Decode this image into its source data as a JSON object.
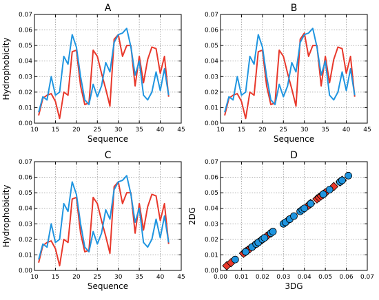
{
  "colors": {
    "red": "#e8382b",
    "blue": "#1f95e0",
    "grid": "#9a9a9a"
  },
  "chart_data": [
    {
      "type": "line",
      "title": "A",
      "xlabel": "Sequence",
      "ylabel": "Hydrophobicity",
      "xlim": [
        10,
        45
      ],
      "ylim": [
        0,
        0.07
      ],
      "xticks": [
        10,
        15,
        20,
        25,
        30,
        35,
        40,
        45
      ],
      "yticks": [
        0.0,
        0.01,
        0.02,
        0.03,
        0.04,
        0.05,
        0.06,
        0.07
      ],
      "grid": true,
      "x": [
        11,
        12,
        13,
        14,
        15,
        16,
        17,
        18,
        19,
        20,
        21,
        22,
        23,
        24,
        25,
        26,
        27,
        28,
        29,
        30,
        31,
        32,
        33,
        34,
        35,
        36,
        37,
        38,
        39,
        40,
        41,
        42
      ],
      "series": [
        {
          "color": "red",
          "values": [
            0.005,
            0.016,
            0.018,
            0.019,
            0.014,
            0.003,
            0.02,
            0.018,
            0.046,
            0.047,
            0.024,
            0.012,
            0.013,
            0.047,
            0.043,
            0.032,
            0.022,
            0.011,
            0.054,
            0.057,
            0.043,
            0.05,
            0.05,
            0.024,
            0.043,
            0.026,
            0.041,
            0.049,
            0.048,
            0.032,
            0.043,
            0.017
          ]
        },
        {
          "color": "blue",
          "values": [
            0.007,
            0.017,
            0.015,
            0.03,
            0.018,
            0.02,
            0.043,
            0.038,
            0.057,
            0.049,
            0.03,
            0.015,
            0.012,
            0.025,
            0.017,
            0.024,
            0.039,
            0.033,
            0.052,
            0.057,
            0.058,
            0.061,
            0.049,
            0.031,
            0.04,
            0.018,
            0.015,
            0.02,
            0.033,
            0.021,
            0.035,
            0.018
          ]
        }
      ]
    },
    {
      "type": "line",
      "title": "B",
      "xlabel": "Sequence",
      "ylabel": "",
      "xlim": [
        10,
        45
      ],
      "ylim": [
        0,
        0.07
      ],
      "xticks": [
        10,
        15,
        20,
        25,
        30,
        35,
        40,
        45
      ],
      "yticks": [
        0.0,
        0.01,
        0.02,
        0.03,
        0.04,
        0.05,
        0.06,
        0.07
      ],
      "grid": true,
      "x": [
        11,
        12,
        13,
        14,
        15,
        16,
        17,
        18,
        19,
        20,
        21,
        22,
        23,
        24,
        25,
        26,
        27,
        28,
        29,
        30,
        31,
        32,
        33,
        34,
        35,
        36,
        37,
        38,
        39,
        40,
        41,
        42
      ],
      "series": [
        {
          "color": "red",
          "values": [
            0.005,
            0.016,
            0.018,
            0.019,
            0.014,
            0.003,
            0.02,
            0.018,
            0.046,
            0.047,
            0.024,
            0.012,
            0.013,
            0.047,
            0.043,
            0.032,
            0.022,
            0.011,
            0.054,
            0.058,
            0.043,
            0.05,
            0.05,
            0.024,
            0.043,
            0.026,
            0.041,
            0.049,
            0.048,
            0.032,
            0.043,
            0.017
          ]
        },
        {
          "color": "blue",
          "values": [
            0.007,
            0.017,
            0.015,
            0.03,
            0.018,
            0.02,
            0.043,
            0.038,
            0.057,
            0.049,
            0.03,
            0.015,
            0.012,
            0.025,
            0.017,
            0.024,
            0.039,
            0.033,
            0.052,
            0.057,
            0.058,
            0.061,
            0.049,
            0.031,
            0.04,
            0.018,
            0.015,
            0.02,
            0.033,
            0.021,
            0.035,
            0.018
          ]
        }
      ]
    },
    {
      "type": "line",
      "title": "C",
      "xlabel": "Sequence",
      "ylabel": "Hydrophobicity",
      "xlim": [
        10,
        45
      ],
      "ylim": [
        0,
        0.07
      ],
      "xticks": [
        10,
        15,
        20,
        25,
        30,
        35,
        40,
        45
      ],
      "yticks": [
        0.0,
        0.01,
        0.02,
        0.03,
        0.04,
        0.05,
        0.06,
        0.07
      ],
      "grid": true,
      "x": [
        11,
        12,
        13,
        14,
        15,
        16,
        17,
        18,
        19,
        20,
        21,
        22,
        23,
        24,
        25,
        26,
        27,
        28,
        29,
        30,
        31,
        32,
        33,
        34,
        35,
        36,
        37,
        38,
        39,
        40,
        41,
        42
      ],
      "series": [
        {
          "color": "red",
          "values": [
            0.005,
            0.016,
            0.018,
            0.019,
            0.014,
            0.003,
            0.02,
            0.018,
            0.046,
            0.047,
            0.024,
            0.012,
            0.013,
            0.047,
            0.043,
            0.032,
            0.022,
            0.011,
            0.054,
            0.057,
            0.043,
            0.05,
            0.05,
            0.024,
            0.043,
            0.026,
            0.041,
            0.049,
            0.048,
            0.032,
            0.043,
            0.017
          ]
        },
        {
          "color": "blue",
          "values": [
            0.007,
            0.017,
            0.015,
            0.03,
            0.018,
            0.02,
            0.043,
            0.038,
            0.057,
            0.049,
            0.03,
            0.015,
            0.012,
            0.025,
            0.017,
            0.024,
            0.039,
            0.033,
            0.052,
            0.057,
            0.058,
            0.061,
            0.049,
            0.031,
            0.04,
            0.018,
            0.015,
            0.02,
            0.033,
            0.021,
            0.035,
            0.018
          ]
        }
      ]
    },
    {
      "type": "scatter",
      "title": "D",
      "xlabel": "3DG",
      "ylabel": "2DG",
      "xlim": [
        0,
        0.07
      ],
      "ylim": [
        0,
        0.07
      ],
      "xticks": [
        0.0,
        0.01,
        0.02,
        0.03,
        0.04,
        0.05,
        0.06,
        0.07
      ],
      "yticks": [
        0.0,
        0.01,
        0.02,
        0.03,
        0.04,
        0.05,
        0.06,
        0.07
      ],
      "grid": true,
      "series": [
        {
          "color": "red",
          "marker": "diamond",
          "x": [
            0.003,
            0.005,
            0.011,
            0.012,
            0.013,
            0.014,
            0.016,
            0.018,
            0.019,
            0.02,
            0.022,
            0.024,
            0.032,
            0.042,
            0.043,
            0.043,
            0.046,
            0.047,
            0.048,
            0.049,
            0.05,
            0.05,
            0.054,
            0.057,
            0.058
          ],
          "y": [
            0.003,
            0.005,
            0.011,
            0.012,
            0.013,
            0.014,
            0.016,
            0.018,
            0.019,
            0.02,
            0.022,
            0.024,
            0.032,
            0.042,
            0.043,
            0.043,
            0.046,
            0.047,
            0.048,
            0.049,
            0.05,
            0.05,
            0.054,
            0.057,
            0.058
          ]
        },
        {
          "color": "blue",
          "marker": "circle",
          "x": [
            0.007,
            0.012,
            0.015,
            0.015,
            0.017,
            0.018,
            0.018,
            0.02,
            0.021,
            0.024,
            0.025,
            0.03,
            0.031,
            0.033,
            0.033,
            0.035,
            0.038,
            0.039,
            0.04,
            0.043,
            0.049,
            0.049,
            0.052,
            0.057,
            0.057,
            0.058,
            0.061
          ],
          "y": [
            0.007,
            0.012,
            0.015,
            0.015,
            0.017,
            0.018,
            0.018,
            0.02,
            0.021,
            0.024,
            0.025,
            0.03,
            0.031,
            0.033,
            0.033,
            0.035,
            0.038,
            0.039,
            0.04,
            0.043,
            0.049,
            0.049,
            0.052,
            0.057,
            0.057,
            0.058,
            0.061
          ]
        }
      ]
    }
  ]
}
